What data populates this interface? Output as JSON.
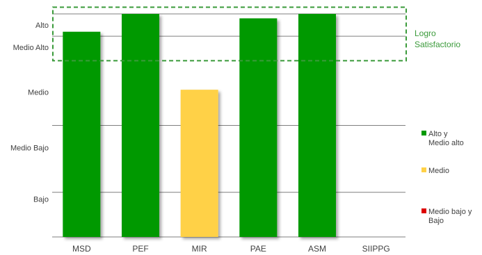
{
  "chart_data": {
    "type": "bar",
    "categories": [
      "MSD",
      "PEF",
      "MIR",
      "PAE",
      "ASM",
      "SIIPPG"
    ],
    "values": [
      4.6,
      5.0,
      3.3,
      4.9,
      5.0,
      0
    ],
    "bar_colors": [
      "#009900",
      "#009900",
      "#ffd147",
      "#009900",
      "#009900",
      "#009900"
    ],
    "y_levels": [
      {
        "label": "Alto",
        "value": 4.75
      },
      {
        "label": "Medio  Alto",
        "value": 4.25
      },
      {
        "label": "Medio",
        "value": 3.25
      },
      {
        "label": "Medio Bajo",
        "value": 2.0
      },
      {
        "label": "Bajo",
        "value": 0.85
      }
    ],
    "gridlines": [
      0,
      1.0,
      2.5,
      4.5,
      5.0
    ],
    "ylim": [
      0,
      5.0
    ],
    "annotation": {
      "text": [
        "Logro",
        "Satisfactorio"
      ],
      "range": [
        3.95,
        5.15
      ],
      "color": "#3a9a3a"
    },
    "legend": {
      "position": "right",
      "entries": [
        {
          "lines": [
            "Alto y",
            "Medio alto"
          ],
          "color": "#009900"
        },
        {
          "lines": [
            "Medio"
          ],
          "color": "#ffd147"
        },
        {
          "lines": [
            "Medio bajo y",
            "Bajo"
          ],
          "color": "#dd0000"
        }
      ]
    },
    "title": "",
    "xlabel": "",
    "ylabel": ""
  }
}
